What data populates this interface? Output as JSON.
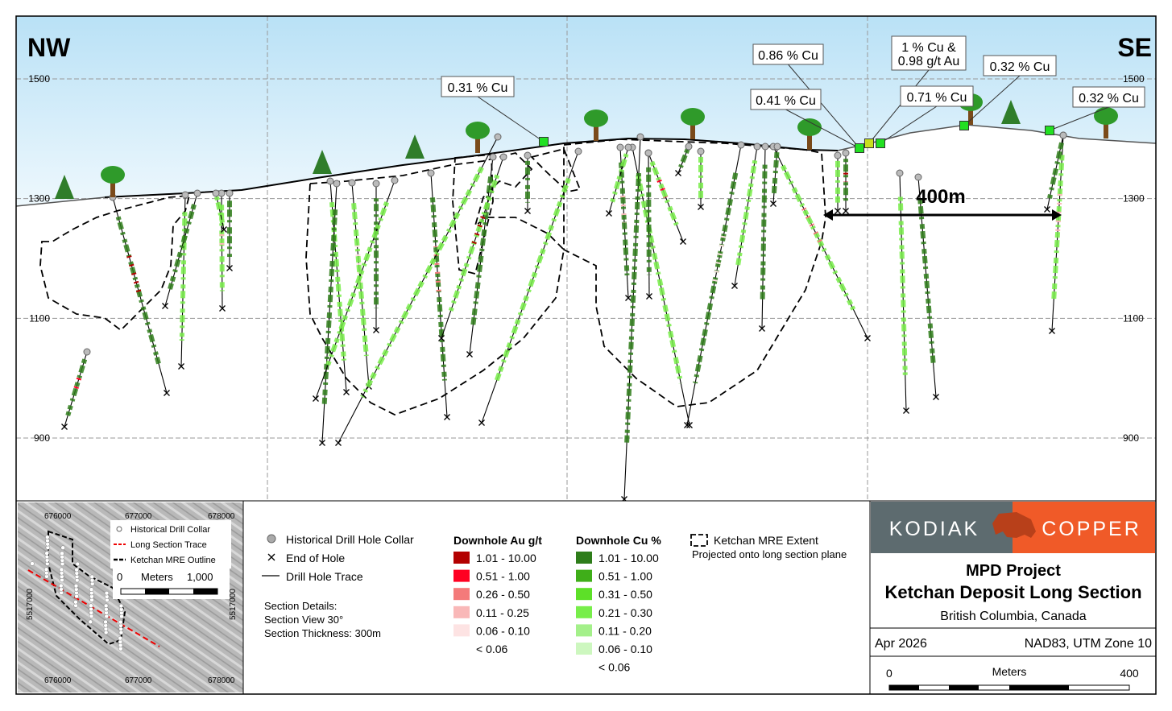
{
  "section": {
    "left_direction": "NW",
    "right_direction": "SE",
    "elevation_labels": [
      1500,
      1300,
      1100,
      900
    ],
    "elevation_lim": [
      795,
      1605
    ],
    "scale_label": "400m",
    "annotations": [
      {
        "lines": [
          "0.31 % Cu"
        ]
      },
      {
        "lines": [
          "0.86 % Cu"
        ]
      },
      {
        "lines": [
          "1 % Cu &",
          "0.98 g/t Au"
        ]
      },
      {
        "lines": [
          "0.41 % Cu"
        ]
      },
      {
        "lines": [
          "0.71 % Cu"
        ]
      },
      {
        "lines": [
          "0.32 % Cu"
        ]
      },
      {
        "lines": [
          "0.32 % Cu"
        ]
      }
    ]
  },
  "legend": {
    "collar": "Historical Drill Hole Collar",
    "end": "End of Hole",
    "trace": "Drill Hole Trace",
    "details": [
      "Section Details:",
      "Section View 30°",
      "Section Thickness: 300m"
    ],
    "au": {
      "title": "Downhole Au g/t",
      "items": [
        {
          "label": "1.01 - 10.00",
          "color": "#b30000"
        },
        {
          "label": "0.51 - 1.00",
          "color": "#ff0022"
        },
        {
          "label": "0.26 - 0.50",
          "color": "#f47a7a"
        },
        {
          "label": "0.11 - 0.25",
          "color": "#f9b8b8"
        },
        {
          "label": "0.06 - 0.10",
          "color": "#fde3e3"
        }
      ],
      "below": "< 0.06"
    },
    "cu": {
      "title": "Downhole Cu %",
      "items": [
        {
          "label": "1.01 - 10.00",
          "color": "#2e7d1a"
        },
        {
          "label": "0.51 - 1.00",
          "color": "#3fae19"
        },
        {
          "label": "0.31 - 0.50",
          "color": "#5de028"
        },
        {
          "label": "0.21 - 0.30",
          "color": "#78ee4a"
        },
        {
          "label": "0.11 - 0.20",
          "color": "#a4f08a"
        },
        {
          "label": "0.06 - 0.10",
          "color": "#cdf7bf"
        }
      ],
      "below": "< 0.06"
    },
    "mre": "Ketchan MRE Extent",
    "mre_note": "Projected onto long section plane"
  },
  "inset": {
    "top_labels": [
      "676000",
      "677000",
      "678000"
    ],
    "bottom_labels": [
      "676000",
      "677000",
      "678000"
    ],
    "side_label": "5517000",
    "legend": [
      "Historical Drill Collar",
      "Long Section Trace",
      "Ketchan MRE Outline"
    ],
    "scale": [
      "0",
      "Meters",
      "1,000"
    ]
  },
  "title_block": {
    "logo_left": "KODIAK",
    "logo_right": "COPPER",
    "project": "MPD Project",
    "title": "Ketchan Deposit Long Section",
    "location": "British Columbia, Canada",
    "date": "Apr 2026",
    "datum": "NAD83, UTM Zone 10",
    "scale": [
      "0",
      "Meters",
      "400"
    ]
  }
}
